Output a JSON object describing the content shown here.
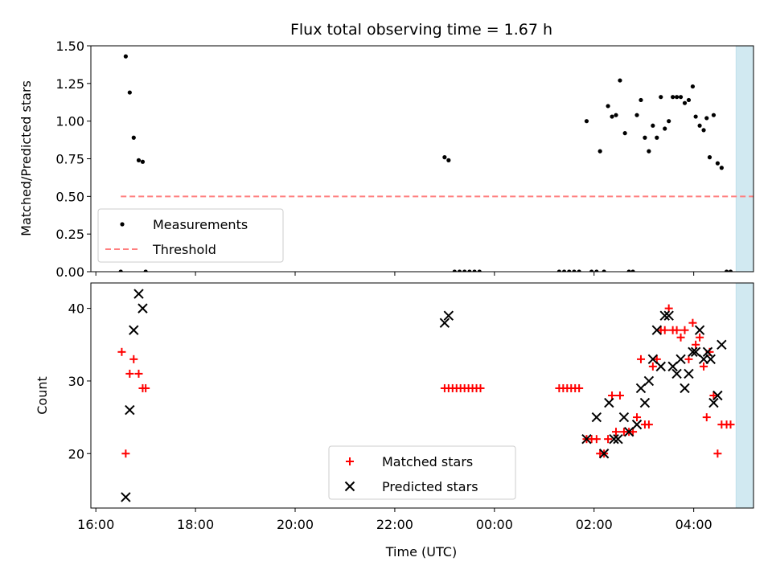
{
  "chart_data": [
    {
      "type": "scatter",
      "title": "Flux total observing time = 1.67 h",
      "xlabel": "",
      "ylabel": "Matched/Predicted stars",
      "ylim": [
        0,
        1.5
      ],
      "yticks": [
        "0.00",
        "0.25",
        "0.50",
        "0.75",
        "1.00",
        "1.25",
        "1.50"
      ],
      "x_unit": "hours since 16:00 UTC",
      "xlim": [
        -0.1,
        13.2
      ],
      "highlight_span": [
        12.85,
        14.5
      ],
      "highlight_color": "#add8e6",
      "threshold": {
        "name": "Threshold",
        "y": 0.5,
        "x_start": 0.5,
        "x_end": 14.7,
        "color": "#ff7f7f"
      },
      "legend": {
        "position": "bottom-left",
        "entries": [
          "Measurements",
          "Threshold"
        ]
      },
      "series": [
        {
          "name": "Measurements",
          "color": "#000000",
          "points": [
            [
              0.5,
              0.0
            ],
            [
              0.6,
              1.43
            ],
            [
              0.68,
              1.19
            ],
            [
              0.76,
              0.89
            ],
            [
              0.86,
              0.74
            ],
            [
              0.94,
              0.73
            ],
            [
              1.0,
              0.0
            ],
            [
              7.0,
              0.76
            ],
            [
              7.08,
              0.74
            ],
            [
              7.2,
              0.0
            ],
            [
              7.3,
              0.0
            ],
            [
              7.4,
              0.0
            ],
            [
              7.5,
              0.0
            ],
            [
              7.6,
              0.0
            ],
            [
              7.7,
              0.0
            ],
            [
              9.3,
              0.0
            ],
            [
              9.4,
              0.0
            ],
            [
              9.5,
              0.0
            ],
            [
              9.6,
              0.0
            ],
            [
              9.7,
              0.0
            ],
            [
              9.85,
              1.0
            ],
            [
              9.95,
              0.0
            ],
            [
              10.05,
              0.0
            ],
            [
              10.12,
              0.8
            ],
            [
              10.2,
              0.0
            ],
            [
              10.28,
              1.1
            ],
            [
              10.36,
              1.03
            ],
            [
              10.44,
              1.04
            ],
            [
              10.52,
              1.27
            ],
            [
              10.62,
              0.92
            ],
            [
              10.7,
              0.0
            ],
            [
              10.78,
              0.0
            ],
            [
              10.86,
              1.04
            ],
            [
              10.94,
              1.14
            ],
            [
              11.02,
              0.89
            ],
            [
              11.1,
              0.8
            ],
            [
              11.18,
              0.97
            ],
            [
              11.26,
              0.89
            ],
            [
              11.34,
              1.16
            ],
            [
              11.42,
              0.95
            ],
            [
              11.5,
              1.0
            ],
            [
              11.58,
              1.16
            ],
            [
              11.66,
              1.16
            ],
            [
              11.74,
              1.16
            ],
            [
              11.82,
              1.12
            ],
            [
              11.9,
              1.14
            ],
            [
              11.98,
              1.23
            ],
            [
              12.04,
              1.03
            ],
            [
              12.12,
              0.97
            ],
            [
              12.2,
              0.94
            ],
            [
              12.26,
              1.02
            ],
            [
              12.32,
              0.76
            ],
            [
              12.4,
              1.04
            ],
            [
              12.48,
              0.72
            ],
            [
              12.56,
              0.69
            ],
            [
              12.66,
              0.0
            ],
            [
              12.74,
              0.0
            ]
          ]
        }
      ]
    },
    {
      "type": "scatter",
      "title": "",
      "xlabel": "Time (UTC)",
      "ylabel": "Count",
      "ylim": [
        12.5,
        43.5
      ],
      "yticks": [
        "20",
        "30",
        "40"
      ],
      "xticks": [
        "16:00",
        "18:00",
        "20:00",
        "22:00",
        "00:00",
        "02:00",
        "04:00"
      ],
      "x_unit": "hours since 16:00 UTC",
      "xlim": [
        -0.1,
        13.2
      ],
      "highlight_span": [
        12.85,
        14.5
      ],
      "legend": {
        "position": "bottom-center",
        "entries": [
          "Matched stars",
          "Predicted stars"
        ]
      },
      "series": [
        {
          "name": "Matched stars",
          "marker": "plus",
          "color": "#ff0000",
          "points": [
            [
              0.52,
              34
            ],
            [
              0.6,
              20
            ],
            [
              0.68,
              31
            ],
            [
              0.76,
              33
            ],
            [
              0.86,
              31
            ],
            [
              0.94,
              29
            ],
            [
              1.0,
              29
            ],
            [
              7.0,
              29
            ],
            [
              7.08,
              29
            ],
            [
              7.16,
              29
            ],
            [
              7.24,
              29
            ],
            [
              7.32,
              29
            ],
            [
              7.4,
              29
            ],
            [
              7.48,
              29
            ],
            [
              7.56,
              29
            ],
            [
              7.64,
              29
            ],
            [
              7.72,
              29
            ],
            [
              9.3,
              29
            ],
            [
              9.38,
              29
            ],
            [
              9.46,
              29
            ],
            [
              9.54,
              29
            ],
            [
              9.62,
              29
            ],
            [
              9.7,
              29
            ],
            [
              9.85,
              22
            ],
            [
              9.95,
              22
            ],
            [
              10.05,
              22
            ],
            [
              10.12,
              20
            ],
            [
              10.2,
              20
            ],
            [
              10.28,
              22
            ],
            [
              10.36,
              28
            ],
            [
              10.44,
              23
            ],
            [
              10.52,
              28
            ],
            [
              10.6,
              23
            ],
            [
              10.7,
              23
            ],
            [
              10.78,
              23
            ],
            [
              10.86,
              25
            ],
            [
              10.94,
              33
            ],
            [
              11.02,
              24
            ],
            [
              11.1,
              24
            ],
            [
              11.18,
              32
            ],
            [
              11.26,
              33
            ],
            [
              11.34,
              37
            ],
            [
              11.42,
              37
            ],
            [
              11.5,
              40
            ],
            [
              11.58,
              37
            ],
            [
              11.66,
              37
            ],
            [
              11.74,
              36
            ],
            [
              11.82,
              37
            ],
            [
              11.9,
              33
            ],
            [
              11.98,
              38
            ],
            [
              12.04,
              35
            ],
            [
              12.12,
              36
            ],
            [
              12.2,
              32
            ],
            [
              12.26,
              25
            ],
            [
              12.32,
              34
            ],
            [
              12.4,
              28
            ],
            [
              12.48,
              20
            ],
            [
              12.56,
              24
            ],
            [
              12.66,
              24
            ],
            [
              12.74,
              24
            ]
          ]
        },
        {
          "name": "Predicted stars",
          "marker": "x",
          "color": "#000000",
          "points": [
            [
              0.6,
              14
            ],
            [
              0.68,
              26
            ],
            [
              0.76,
              37
            ],
            [
              0.86,
              42
            ],
            [
              0.94,
              40
            ],
            [
              7.0,
              38
            ],
            [
              7.08,
              39
            ],
            [
              9.85,
              22
            ],
            [
              10.05,
              25
            ],
            [
              10.2,
              20
            ],
            [
              10.3,
              27
            ],
            [
              10.4,
              22
            ],
            [
              10.48,
              22
            ],
            [
              10.6,
              25
            ],
            [
              10.7,
              23
            ],
            [
              10.86,
              24
            ],
            [
              10.94,
              29
            ],
            [
              11.02,
              27
            ],
            [
              11.1,
              30
            ],
            [
              11.18,
              33
            ],
            [
              11.26,
              37
            ],
            [
              11.34,
              32
            ],
            [
              11.42,
              39
            ],
            [
              11.5,
              39
            ],
            [
              11.58,
              32
            ],
            [
              11.66,
              31
            ],
            [
              11.74,
              33
            ],
            [
              11.82,
              29
            ],
            [
              11.9,
              31
            ],
            [
              11.98,
              34
            ],
            [
              12.04,
              34
            ],
            [
              12.12,
              37
            ],
            [
              12.2,
              33
            ],
            [
              12.28,
              34
            ],
            [
              12.34,
              33
            ],
            [
              12.4,
              27
            ],
            [
              12.48,
              28
            ],
            [
              12.56,
              35
            ]
          ]
        }
      ]
    }
  ]
}
